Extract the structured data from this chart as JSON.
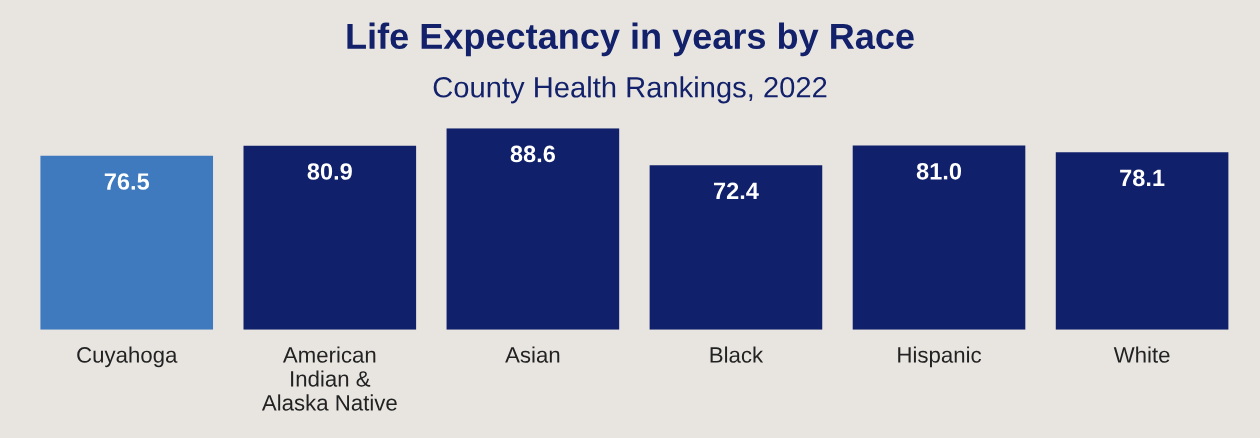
{
  "chart_data": {
    "type": "bar",
    "title": "Life Expectancy in years by Race",
    "subtitle": "County Health Rankings, 2022",
    "categories": [
      "Cuyahoga",
      "American\nIndian &\nAlaska Native",
      "Asian",
      "Black",
      "Hispanic",
      "White"
    ],
    "values": [
      76.5,
      80.9,
      88.6,
      72.4,
      81.0,
      78.1
    ],
    "colors": [
      "#3f7abf",
      "#10206b",
      "#10206b",
      "#10206b",
      "#10206b",
      "#10206b"
    ],
    "value_labels": [
      "76.5",
      "80.9",
      "88.6",
      "72.4",
      "81.0",
      "78.1"
    ],
    "grid": false,
    "legend": false
  }
}
